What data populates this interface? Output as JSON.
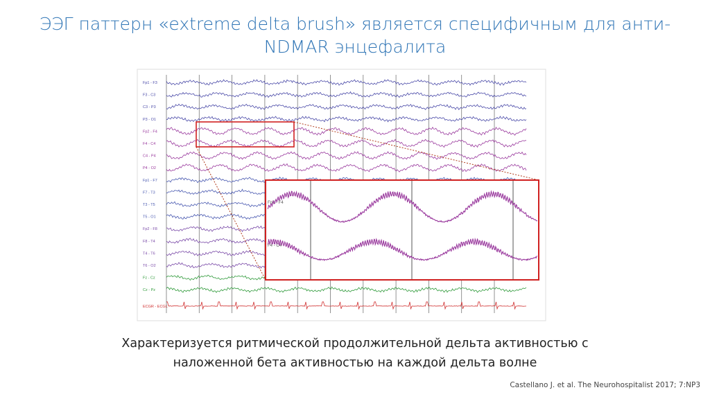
{
  "title": [
    "ЭЭГ паттерн «extreme delta brush» является специфичным для анти-",
    "NDMAR энцефалита"
  ],
  "eeg": {
    "channels": [
      "Fp1 - F3",
      "F3 - C3",
      "C3 - P3",
      "P3 - O1",
      "Fp2 - F4",
      "F4 - C4",
      "C4 - P4",
      "P4 - O2",
      "Fp1 - F7",
      "F7 - T3",
      "T3 - T5",
      "T5 - O1",
      "Fp2 - F8",
      "F8 - T4",
      "T4 - T6",
      "T6 - O2",
      "Fz - Cz",
      "Cz - Pz",
      "ECGR - ECGL"
    ],
    "inset_channels": [
      "Fp2 - F4",
      "F4 - C4"
    ]
  },
  "caption": [
    "Характеризуется ритмической продолжительной дельта активностью с",
    "наложенной бета активностью на каждой дельта волне"
  ],
  "citation": "Castellano J. et al. The Neurohospitalist 2017; 7:NP3"
}
